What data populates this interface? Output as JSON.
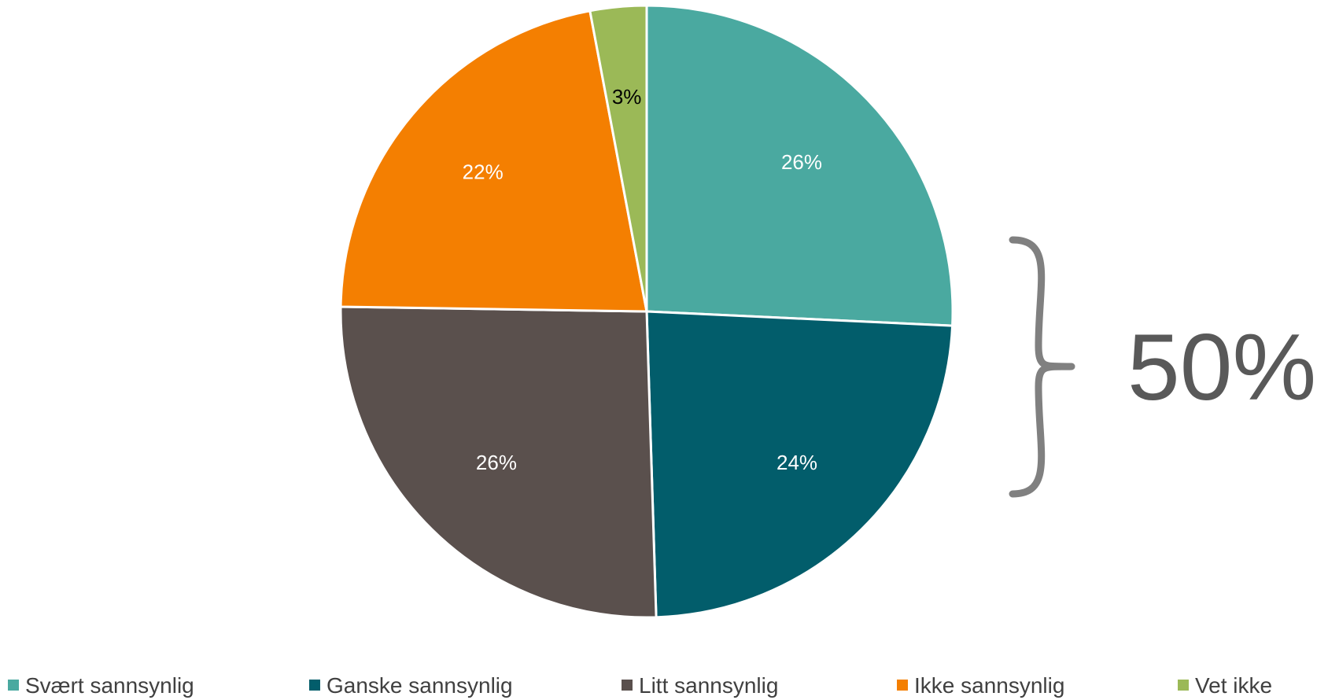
{
  "chart_data": {
    "type": "pie",
    "categories": [
      "Svært sannsynlig",
      "Ganske sannsynlig",
      "Litt sannsynlig",
      "Ikke sannsynlig",
      "Vet ikke"
    ],
    "values": [
      26,
      24,
      26,
      22,
      3
    ],
    "data_labels": [
      "26%",
      "24%",
      "26%",
      "22%",
      "3%"
    ],
    "colors": [
      "#4aa9a0",
      "#025d6b",
      "#5a504d",
      "#f47f01",
      "#9bb957"
    ],
    "label_colors": [
      "#ffffff",
      "#ffffff",
      "#ffffff",
      "#ffffff",
      "#000000"
    ],
    "start": "12 o'clock",
    "direction": "clockwise",
    "legend_position": "bottom",
    "annotation": {
      "text": "50%",
      "brace_spans": [
        "Svært sannsynlig",
        "Ganske sannsynlig"
      ],
      "brace_color": "#808080"
    }
  }
}
